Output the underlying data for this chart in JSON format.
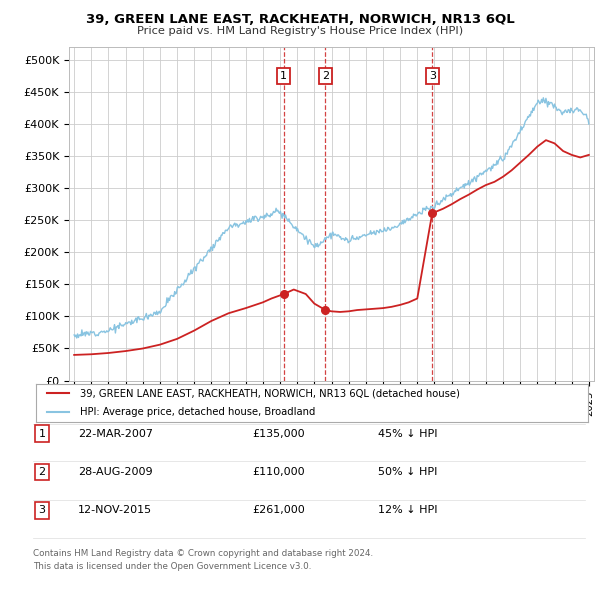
{
  "title": "39, GREEN LANE EAST, RACKHEATH, NORWICH, NR13 6QL",
  "subtitle": "Price paid vs. HM Land Registry's House Price Index (HPI)",
  "ylabel_ticks": [
    "£0",
    "£50K",
    "£100K",
    "£150K",
    "£200K",
    "£250K",
    "£300K",
    "£350K",
    "£400K",
    "£450K",
    "£500K"
  ],
  "ytick_values": [
    0,
    50000,
    100000,
    150000,
    200000,
    250000,
    300000,
    350000,
    400000,
    450000,
    500000
  ],
  "ylim": [
    0,
    520000
  ],
  "xlim_start": 1994.7,
  "xlim_end": 2025.3,
  "hpi_color": "#89c4e1",
  "price_color": "#cc2222",
  "transactions": [
    {
      "num": 1,
      "date": "22-MAR-2007",
      "price": 135000,
      "pct": "45%",
      "direction": "↓",
      "x": 2007.22
    },
    {
      "num": 2,
      "date": "28-AUG-2009",
      "price": 110000,
      "pct": "50%",
      "direction": "↓",
      "x": 2009.65
    },
    {
      "num": 3,
      "date": "12-NOV-2015",
      "price": 261000,
      "pct": "12%",
      "direction": "↓",
      "x": 2015.87
    }
  ],
  "legend_label_price": "39, GREEN LANE EAST, RACKHEATH, NORWICH, NR13 6QL (detached house)",
  "legend_label_hpi": "HPI: Average price, detached house, Broadland",
  "footer1": "Contains HM Land Registry data © Crown copyright and database right 2024.",
  "footer2": "This data is licensed under the Open Government Licence v3.0.",
  "background_color": "#ffffff",
  "grid_color": "#cccccc"
}
